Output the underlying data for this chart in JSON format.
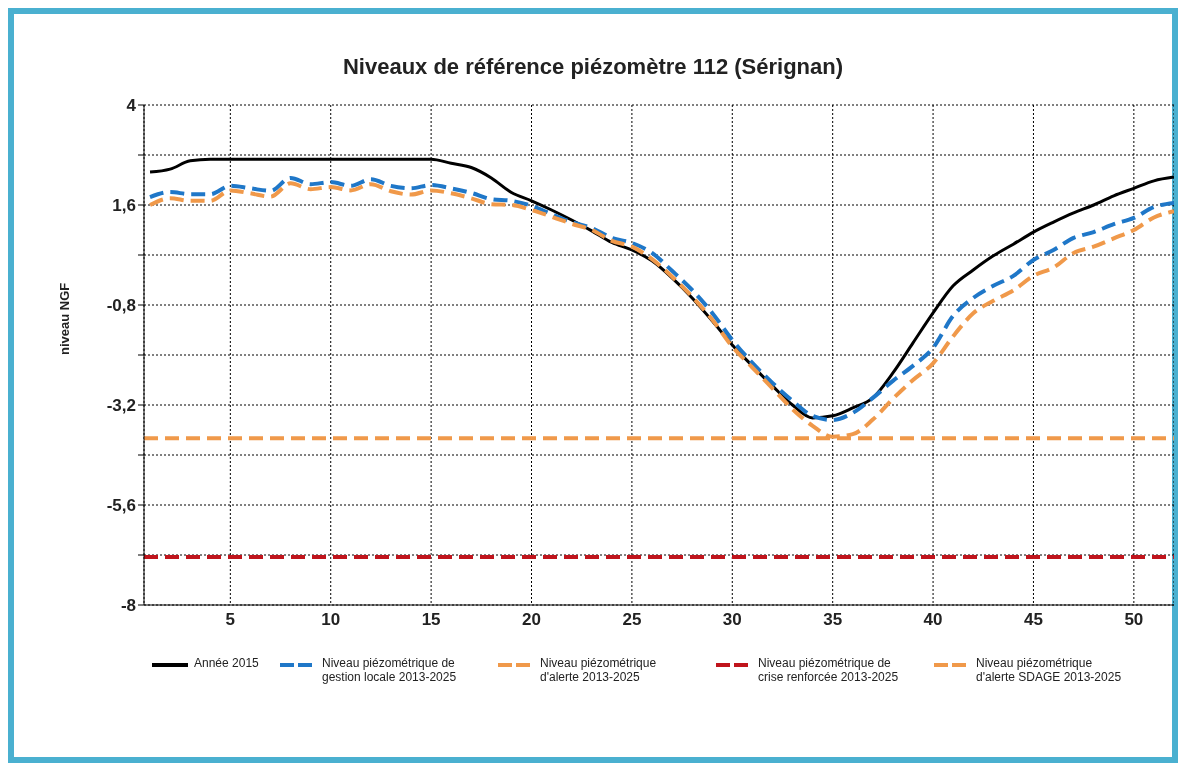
{
  "chart_data": {
    "type": "line",
    "title": "Niveaux de référence piézomètre 112 (Sérignan)",
    "ylabel": "niveau NGF",
    "x": [
      1,
      2,
      3,
      4,
      5,
      6,
      7,
      8,
      9,
      10,
      11,
      12,
      13,
      14,
      15,
      16,
      17,
      18,
      19,
      20,
      21,
      22,
      23,
      24,
      25,
      26,
      27,
      28,
      29,
      30,
      31,
      32,
      33,
      34,
      35,
      36,
      37,
      38,
      39,
      40,
      41,
      42,
      43,
      44,
      45,
      46,
      47,
      48,
      49,
      50,
      51,
      52
    ],
    "xlim": [
      0.7,
      52
    ],
    "xticks": [
      5,
      10,
      15,
      20,
      25,
      30,
      35,
      40,
      45,
      50
    ],
    "ylim": [
      -8,
      4
    ],
    "yticks": [
      4,
      {
        "value": 2.8,
        "label": null
      },
      {
        "value": 1.6,
        "label": "1,6"
      },
      {
        "value": 0.4,
        "label": null
      },
      {
        "value": -0.8,
        "label": "-0,8"
      },
      {
        "value": -2,
        "label": null
      },
      {
        "value": -3.2,
        "label": "-3,2"
      },
      {
        "value": -4.4,
        "label": null
      },
      {
        "value": -5.6,
        "label": "-5,6"
      },
      {
        "value": -6.8,
        "label": null
      },
      -8
    ],
    "grid": true,
    "legend": "bottom",
    "marker": "none",
    "series": [
      {
        "name": "Année 2015",
        "color": "#000000",
        "line_style": "solid",
        "values": [
          2.39,
          2.46,
          2.66,
          2.7,
          2.7,
          2.7,
          2.7,
          2.7,
          2.7,
          2.7,
          2.7,
          2.7,
          2.7,
          2.7,
          2.7,
          2.6,
          2.5,
          2.25,
          1.9,
          1.7,
          1.48,
          1.24,
          0.98,
          0.7,
          0.52,
          0.26,
          -0.15,
          -0.63,
          -1.18,
          -1.76,
          -2.26,
          -2.74,
          -3.2,
          -3.51,
          -3.46,
          -3.27,
          -3.03,
          -2.43,
          -1.71,
          -0.99,
          -0.34,
          0.04,
          0.38,
          0.66,
          0.95,
          1.19,
          1.41,
          1.6,
          1.82,
          2.0,
          2.18,
          2.27
        ]
      },
      {
        "name": "Niveau piézométrique de gestion locale 2013-2025",
        "color": "#1f77c8",
        "line_style": "dashed",
        "values": [
          1.79,
          1.91,
          1.86,
          1.86,
          2.06,
          2.0,
          1.94,
          2.25,
          2.1,
          2.15,
          2.06,
          2.22,
          2.06,
          2.0,
          2.08,
          2.0,
          1.89,
          1.74,
          1.7,
          1.58,
          1.38,
          1.19,
          1.05,
          0.81,
          0.69,
          0.45,
          0.02,
          -0.44,
          -0.99,
          -1.64,
          -2.19,
          -2.67,
          -3.1,
          -3.46,
          -3.56,
          -3.39,
          -3.03,
          -2.62,
          -2.26,
          -1.83,
          -1.06,
          -0.63,
          -0.34,
          -0.1,
          0.28,
          0.52,
          0.81,
          0.95,
          1.14,
          1.29,
          1.55,
          1.65
        ]
      },
      {
        "name": "Niveau piézométrique d'alerte 2013-2025",
        "color": "#f0994a",
        "line_style": "dashed",
        "values": [
          1.6,
          1.76,
          1.7,
          1.7,
          1.95,
          1.88,
          1.8,
          2.12,
          1.98,
          2.03,
          1.95,
          2.1,
          1.93,
          1.85,
          1.95,
          1.88,
          1.76,
          1.62,
          1.6,
          1.48,
          1.32,
          1.15,
          1.0,
          0.74,
          0.6,
          0.3,
          -0.12,
          -0.6,
          -1.15,
          -1.8,
          -2.3,
          -2.8,
          -3.3,
          -3.7,
          -3.96,
          -3.9,
          -3.55,
          -3.05,
          -2.6,
          -2.2,
          -1.55,
          -1.0,
          -0.7,
          -0.45,
          -0.1,
          0.1,
          0.45,
          0.6,
          0.8,
          1.0,
          1.3,
          1.45
        ]
      }
    ],
    "ref_lines": [
      {
        "axis": "y",
        "value": -6.85,
        "label": "Niveau piézométrique de crise renforcée 2013-2025",
        "color": "#c0141c",
        "line_style": "dashed"
      },
      {
        "axis": "y",
        "value": -4.0,
        "label": "Niveau piézométrique d'alerte SDAGE 2013-2025",
        "color": "#f0994a",
        "line_style": "dashed"
      }
    ]
  }
}
